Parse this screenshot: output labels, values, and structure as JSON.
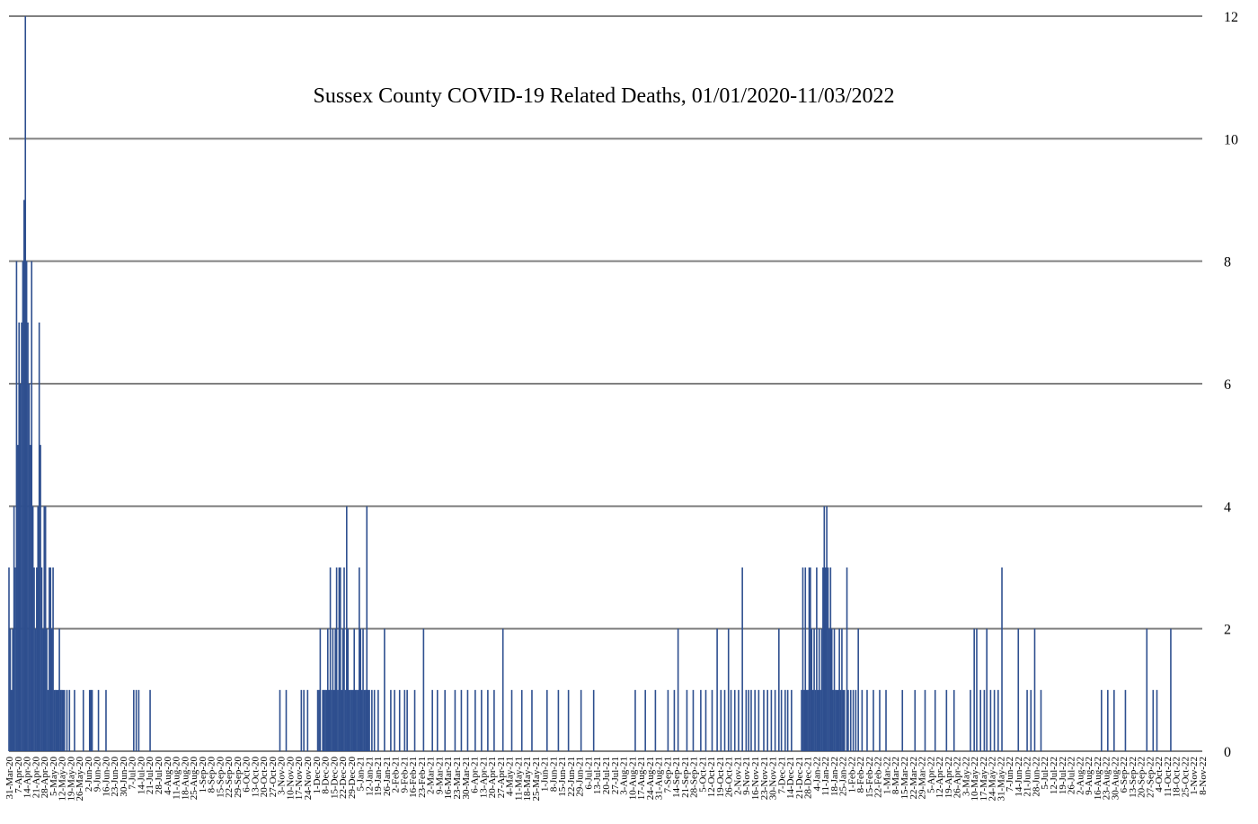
{
  "chart_data": {
    "type": "bar",
    "title": "Sussex County COVID-19 Related Deaths, 01/01/2020-11/03/2022",
    "y_axis_position": "right",
    "ylim": [
      0,
      12
    ],
    "yticks": [
      0,
      2,
      4,
      6,
      8,
      10,
      12
    ],
    "grid": true,
    "bar_color": "#2e4f8f",
    "x_start": "2020-03-31",
    "x_end": "2022-11-03",
    "xtick_labels": [
      "31-Mar-20",
      "7-Apr-20",
      "14-Apr-20",
      "21-Apr-20",
      "28-Apr-20",
      "5-May-20",
      "12-May-20",
      "19-May-20",
      "26-May-20",
      "2-Jun-20",
      "9-Jun-20",
      "16-Jun-20",
      "23-Jun-20",
      "30-Jun-20",
      "7-Jul-20",
      "14-Jul-20",
      "21-Jul-20",
      "28-Jul-20",
      "4-Aug-20",
      "11-Aug-20",
      "18-Aug-20",
      "25-Aug-20",
      "1-Sep-20",
      "8-Sep-20",
      "15-Sep-20",
      "22-Sep-20",
      "29-Sep-20",
      "6-Oct-20",
      "13-Oct-20",
      "20-Oct-20",
      "27-Oct-20",
      "3-Nov-20",
      "10-Nov-20",
      "17-Nov-20",
      "24-Nov-20",
      "1-Dec-20",
      "8-Dec-20",
      "15-Dec-20",
      "22-Dec-20",
      "29-Dec-20",
      "5-Jan-21",
      "12-Jan-21",
      "19-Jan-21",
      "26-Jan-21",
      "2-Feb-21",
      "9-Feb-21",
      "16-Feb-21",
      "23-Feb-21",
      "2-Mar-21",
      "9-Mar-21",
      "16-Mar-21",
      "23-Mar-21",
      "30-Mar-21",
      "6-Apr-21",
      "13-Apr-21",
      "20-Apr-21",
      "27-Apr-21",
      "4-May-21",
      "11-May-21",
      "18-May-21",
      "25-May-21",
      "1-Jun-21",
      "8-Jun-21",
      "15-Jun-21",
      "22-Jun-21",
      "29-Jun-21",
      "6-Jul-21",
      "13-Jul-21",
      "20-Jul-21",
      "27-Jul-21",
      "3-Aug-21",
      "10-Aug-21",
      "17-Aug-21",
      "24-Aug-21",
      "31-Aug-21",
      "7-Sep-21",
      "14-Sep-21",
      "21-Sep-21",
      "28-Sep-21",
      "5-Oct-21",
      "12-Oct-21",
      "19-Oct-21",
      "26-Oct-21",
      "2-Nov-21",
      "9-Nov-21",
      "16-Nov-21",
      "23-Nov-21",
      "30-Nov-21",
      "7-Dec-21",
      "14-Dec-21",
      "21-Dec-21",
      "28-Dec-21",
      "4-Jan-22",
      "11-Jan-22",
      "18-Jan-22",
      "25-Jan-22",
      "1-Feb-22",
      "8-Feb-22",
      "15-Feb-22",
      "22-Feb-22",
      "1-Mar-22",
      "8-Mar-22",
      "15-Mar-22",
      "22-Mar-22",
      "29-Mar-22",
      "5-Apr-22",
      "12-Apr-22",
      "19-Apr-22",
      "26-Apr-22",
      "3-May-22",
      "10-May-22",
      "17-May-22",
      "24-May-22",
      "31-May-22",
      "7-Jun-22",
      "14-Jun-22",
      "21-Jun-22",
      "28-Jun-22",
      "5-Jul-22",
      "12-Jul-22",
      "19-Jul-22",
      "26-Jul-22",
      "2-Aug-22",
      "9-Aug-22",
      "16-Aug-22",
      "23-Aug-22",
      "30-Aug-22",
      "6-Sep-22",
      "13-Sep-22",
      "20-Sep-22",
      "27-Sep-22",
      "4-Oct-22",
      "11-Oct-22",
      "18-Oct-22",
      "25-Oct-22",
      "1-Nov-22",
      "8-Nov-22"
    ],
    "bars": [
      {
        "x": "2020-03-31",
        "y": 3
      },
      {
        "x": "2020-04-01",
        "y": 2
      },
      {
        "x": "2020-04-02",
        "y": 1
      },
      {
        "x": "2020-04-03",
        "y": 2
      },
      {
        "x": "2020-04-04",
        "y": 4
      },
      {
        "x": "2020-04-05",
        "y": 3
      },
      {
        "x": "2020-04-06",
        "y": 8
      },
      {
        "x": "2020-04-07",
        "y": 5
      },
      {
        "x": "2020-04-08",
        "y": 7
      },
      {
        "x": "2020-04-09",
        "y": 6
      },
      {
        "x": "2020-04-10",
        "y": 7
      },
      {
        "x": "2020-04-11",
        "y": 8
      },
      {
        "x": "2020-04-12",
        "y": 9
      },
      {
        "x": "2020-04-13",
        "y": 12
      },
      {
        "x": "2020-04-14",
        "y": 8
      },
      {
        "x": "2020-04-15",
        "y": 7
      },
      {
        "x": "2020-04-16",
        "y": 6
      },
      {
        "x": "2020-04-17",
        "y": 5
      },
      {
        "x": "2020-04-18",
        "y": 8
      },
      {
        "x": "2020-04-19",
        "y": 4
      },
      {
        "x": "2020-04-20",
        "y": 3
      },
      {
        "x": "2020-04-21",
        "y": 2
      },
      {
        "x": "2020-04-22",
        "y": 3
      },
      {
        "x": "2020-04-23",
        "y": 4
      },
      {
        "x": "2020-04-24",
        "y": 7
      },
      {
        "x": "2020-04-25",
        "y": 5
      },
      {
        "x": "2020-04-26",
        "y": 3
      },
      {
        "x": "2020-04-27",
        "y": 2
      },
      {
        "x": "2020-04-28",
        "y": 4
      },
      {
        "x": "2020-04-29",
        "y": 4
      },
      {
        "x": "2020-04-30",
        "y": 2
      },
      {
        "x": "2020-05-01",
        "y": 1
      },
      {
        "x": "2020-05-02",
        "y": 3
      },
      {
        "x": "2020-05-03",
        "y": 3
      },
      {
        "x": "2020-05-04",
        "y": 2
      },
      {
        "x": "2020-05-05",
        "y": 3
      },
      {
        "x": "2020-05-06",
        "y": 1
      },
      {
        "x": "2020-05-07",
        "y": 1
      },
      {
        "x": "2020-05-08",
        "y": 1
      },
      {
        "x": "2020-05-09",
        "y": 1
      },
      {
        "x": "2020-05-10",
        "y": 2
      },
      {
        "x": "2020-05-11",
        "y": 1
      },
      {
        "x": "2020-05-12",
        "y": 1
      },
      {
        "x": "2020-05-13",
        "y": 1
      },
      {
        "x": "2020-05-14",
        "y": 1
      },
      {
        "x": "2020-05-16",
        "y": 1
      },
      {
        "x": "2020-05-18",
        "y": 1
      },
      {
        "x": "2020-05-22",
        "y": 1
      },
      {
        "x": "2020-05-29",
        "y": 1
      },
      {
        "x": "2020-06-03",
        "y": 1
      },
      {
        "x": "2020-06-04",
        "y": 1
      },
      {
        "x": "2020-06-05",
        "y": 1
      },
      {
        "x": "2020-06-10",
        "y": 1
      },
      {
        "x": "2020-06-16",
        "y": 1
      },
      {
        "x": "2020-07-08",
        "y": 1
      },
      {
        "x": "2020-07-10",
        "y": 1
      },
      {
        "x": "2020-07-12",
        "y": 1
      },
      {
        "x": "2020-07-21",
        "y": 1
      },
      {
        "x": "2020-11-01",
        "y": 1
      },
      {
        "x": "2020-11-06",
        "y": 1
      },
      {
        "x": "2020-11-18",
        "y": 1
      },
      {
        "x": "2020-11-20",
        "y": 1
      },
      {
        "x": "2020-11-23",
        "y": 1
      },
      {
        "x": "2020-12-01",
        "y": 1
      },
      {
        "x": "2020-12-02",
        "y": 1
      },
      {
        "x": "2020-12-03",
        "y": 2
      },
      {
        "x": "2020-12-05",
        "y": 1
      },
      {
        "x": "2020-12-06",
        "y": 1
      },
      {
        "x": "2020-12-07",
        "y": 1
      },
      {
        "x": "2020-12-08",
        "y": 1
      },
      {
        "x": "2020-12-09",
        "y": 2
      },
      {
        "x": "2020-12-10",
        "y": 1
      },
      {
        "x": "2020-12-11",
        "y": 3
      },
      {
        "x": "2020-12-12",
        "y": 1
      },
      {
        "x": "2020-12-13",
        "y": 2
      },
      {
        "x": "2020-12-14",
        "y": 1
      },
      {
        "x": "2020-12-15",
        "y": 2
      },
      {
        "x": "2020-12-16",
        "y": 3
      },
      {
        "x": "2020-12-17",
        "y": 1
      },
      {
        "x": "2020-12-18",
        "y": 3
      },
      {
        "x": "2020-12-19",
        "y": 3
      },
      {
        "x": "2020-12-20",
        "y": 1
      },
      {
        "x": "2020-12-21",
        "y": 2
      },
      {
        "x": "2020-12-22",
        "y": 3
      },
      {
        "x": "2020-12-23",
        "y": 1
      },
      {
        "x": "2020-12-24",
        "y": 4
      },
      {
        "x": "2020-12-25",
        "y": 2
      },
      {
        "x": "2020-12-26",
        "y": 1
      },
      {
        "x": "2020-12-27",
        "y": 1
      },
      {
        "x": "2020-12-28",
        "y": 1
      },
      {
        "x": "2020-12-29",
        "y": 1
      },
      {
        "x": "2020-12-30",
        "y": 2
      },
      {
        "x": "2020-12-31",
        "y": 1
      },
      {
        "x": "2021-01-01",
        "y": 1
      },
      {
        "x": "2021-01-02",
        "y": 1
      },
      {
        "x": "2021-01-03",
        "y": 3
      },
      {
        "x": "2021-01-04",
        "y": 2
      },
      {
        "x": "2021-01-05",
        "y": 1
      },
      {
        "x": "2021-01-06",
        "y": 2
      },
      {
        "x": "2021-01-07",
        "y": 1
      },
      {
        "x": "2021-01-08",
        "y": 1
      },
      {
        "x": "2021-01-09",
        "y": 4
      },
      {
        "x": "2021-01-10",
        "y": 1
      },
      {
        "x": "2021-01-11",
        "y": 1
      },
      {
        "x": "2021-01-13",
        "y": 1
      },
      {
        "x": "2021-01-15",
        "y": 1
      },
      {
        "x": "2021-01-18",
        "y": 1
      },
      {
        "x": "2021-01-23",
        "y": 2
      },
      {
        "x": "2021-01-28",
        "y": 1
      },
      {
        "x": "2021-01-31",
        "y": 1
      },
      {
        "x": "2021-02-04",
        "y": 1
      },
      {
        "x": "2021-02-08",
        "y": 1
      },
      {
        "x": "2021-02-10",
        "y": 1
      },
      {
        "x": "2021-02-16",
        "y": 1
      },
      {
        "x": "2021-02-23",
        "y": 2
      },
      {
        "x": "2021-03-02",
        "y": 1
      },
      {
        "x": "2021-03-06",
        "y": 1
      },
      {
        "x": "2021-03-12",
        "y": 1
      },
      {
        "x": "2021-03-20",
        "y": 1
      },
      {
        "x": "2021-03-25",
        "y": 1
      },
      {
        "x": "2021-03-30",
        "y": 1
      },
      {
        "x": "2021-04-05",
        "y": 1
      },
      {
        "x": "2021-04-10",
        "y": 1
      },
      {
        "x": "2021-04-15",
        "y": 1
      },
      {
        "x": "2021-04-20",
        "y": 1
      },
      {
        "x": "2021-04-27",
        "y": 2
      },
      {
        "x": "2021-05-04",
        "y": 1
      },
      {
        "x": "2021-05-12",
        "y": 1
      },
      {
        "x": "2021-05-20",
        "y": 1
      },
      {
        "x": "2021-06-01",
        "y": 1
      },
      {
        "x": "2021-06-10",
        "y": 1
      },
      {
        "x": "2021-06-18",
        "y": 1
      },
      {
        "x": "2021-06-28",
        "y": 1
      },
      {
        "x": "2021-07-08",
        "y": 1
      },
      {
        "x": "2021-08-10",
        "y": 1
      },
      {
        "x": "2021-08-18",
        "y": 1
      },
      {
        "x": "2021-08-26",
        "y": 1
      },
      {
        "x": "2021-09-05",
        "y": 1
      },
      {
        "x": "2021-09-10",
        "y": 1
      },
      {
        "x": "2021-09-13",
        "y": 2
      },
      {
        "x": "2021-09-20",
        "y": 1
      },
      {
        "x": "2021-09-25",
        "y": 1
      },
      {
        "x": "2021-10-01",
        "y": 1
      },
      {
        "x": "2021-10-05",
        "y": 1
      },
      {
        "x": "2021-10-10",
        "y": 1
      },
      {
        "x": "2021-10-14",
        "y": 2
      },
      {
        "x": "2021-10-17",
        "y": 1
      },
      {
        "x": "2021-10-20",
        "y": 1
      },
      {
        "x": "2021-10-23",
        "y": 2
      },
      {
        "x": "2021-10-25",
        "y": 1
      },
      {
        "x": "2021-10-28",
        "y": 1
      },
      {
        "x": "2021-10-31",
        "y": 1
      },
      {
        "x": "2021-11-03",
        "y": 3
      },
      {
        "x": "2021-11-06",
        "y": 1
      },
      {
        "x": "2021-11-08",
        "y": 1
      },
      {
        "x": "2021-11-10",
        "y": 1
      },
      {
        "x": "2021-11-13",
        "y": 1
      },
      {
        "x": "2021-11-16",
        "y": 1
      },
      {
        "x": "2021-11-20",
        "y": 1
      },
      {
        "x": "2021-11-23",
        "y": 1
      },
      {
        "x": "2021-11-26",
        "y": 1
      },
      {
        "x": "2021-11-29",
        "y": 1
      },
      {
        "x": "2021-12-02",
        "y": 2
      },
      {
        "x": "2021-12-04",
        "y": 1
      },
      {
        "x": "2021-12-07",
        "y": 1
      },
      {
        "x": "2021-12-09",
        "y": 1
      },
      {
        "x": "2021-12-12",
        "y": 1
      },
      {
        "x": "2021-12-20",
        "y": 1
      },
      {
        "x": "2021-12-21",
        "y": 3
      },
      {
        "x": "2021-12-22",
        "y": 1
      },
      {
        "x": "2021-12-23",
        "y": 3
      },
      {
        "x": "2021-12-24",
        "y": 1
      },
      {
        "x": "2021-12-25",
        "y": 1
      },
      {
        "x": "2021-12-26",
        "y": 3
      },
      {
        "x": "2021-12-27",
        "y": 3
      },
      {
        "x": "2021-12-28",
        "y": 2
      },
      {
        "x": "2021-12-29",
        "y": 1
      },
      {
        "x": "2021-12-30",
        "y": 2
      },
      {
        "x": "2021-12-31",
        "y": 1
      },
      {
        "x": "2022-01-01",
        "y": 3
      },
      {
        "x": "2022-01-02",
        "y": 1
      },
      {
        "x": "2022-01-03",
        "y": 2
      },
      {
        "x": "2022-01-04",
        "y": 1
      },
      {
        "x": "2022-01-05",
        "y": 2
      },
      {
        "x": "2022-01-06",
        "y": 3
      },
      {
        "x": "2022-01-07",
        "y": 4
      },
      {
        "x": "2022-01-08",
        "y": 3
      },
      {
        "x": "2022-01-09",
        "y": 4
      },
      {
        "x": "2022-01-10",
        "y": 3
      },
      {
        "x": "2022-01-11",
        "y": 2
      },
      {
        "x": "2022-01-12",
        "y": 3
      },
      {
        "x": "2022-01-13",
        "y": 2
      },
      {
        "x": "2022-01-14",
        "y": 1
      },
      {
        "x": "2022-01-15",
        "y": 2
      },
      {
        "x": "2022-01-16",
        "y": 1
      },
      {
        "x": "2022-01-17",
        "y": 1
      },
      {
        "x": "2022-01-18",
        "y": 1
      },
      {
        "x": "2022-01-19",
        "y": 2
      },
      {
        "x": "2022-01-20",
        "y": 1
      },
      {
        "x": "2022-01-21",
        "y": 2
      },
      {
        "x": "2022-01-22",
        "y": 1
      },
      {
        "x": "2022-01-23",
        "y": 1
      },
      {
        "x": "2022-01-25",
        "y": 3
      },
      {
        "x": "2022-01-26",
        "y": 1
      },
      {
        "x": "2022-01-28",
        "y": 1
      },
      {
        "x": "2022-01-30",
        "y": 1
      },
      {
        "x": "2022-02-01",
        "y": 1
      },
      {
        "x": "2022-02-03",
        "y": 2
      },
      {
        "x": "2022-02-06",
        "y": 1
      },
      {
        "x": "2022-02-10",
        "y": 1
      },
      {
        "x": "2022-02-15",
        "y": 1
      },
      {
        "x": "2022-02-20",
        "y": 1
      },
      {
        "x": "2022-02-25",
        "y": 1
      },
      {
        "x": "2022-03-10",
        "y": 1
      },
      {
        "x": "2022-03-20",
        "y": 1
      },
      {
        "x": "2022-03-28",
        "y": 1
      },
      {
        "x": "2022-04-05",
        "y": 1
      },
      {
        "x": "2022-04-14",
        "y": 1
      },
      {
        "x": "2022-04-20",
        "y": 1
      },
      {
        "x": "2022-05-03",
        "y": 1
      },
      {
        "x": "2022-05-06",
        "y": 2
      },
      {
        "x": "2022-05-08",
        "y": 2
      },
      {
        "x": "2022-05-11",
        "y": 1
      },
      {
        "x": "2022-05-14",
        "y": 1
      },
      {
        "x": "2022-05-16",
        "y": 2
      },
      {
        "x": "2022-05-19",
        "y": 1
      },
      {
        "x": "2022-05-22",
        "y": 1
      },
      {
        "x": "2022-05-25",
        "y": 1
      },
      {
        "x": "2022-05-28",
        "y": 3
      },
      {
        "x": "2022-06-10",
        "y": 2
      },
      {
        "x": "2022-06-17",
        "y": 1
      },
      {
        "x": "2022-06-20",
        "y": 1
      },
      {
        "x": "2022-06-23",
        "y": 2
      },
      {
        "x": "2022-06-28",
        "y": 1
      },
      {
        "x": "2022-08-15",
        "y": 1
      },
      {
        "x": "2022-08-20",
        "y": 1
      },
      {
        "x": "2022-08-25",
        "y": 1
      },
      {
        "x": "2022-09-03",
        "y": 1
      },
      {
        "x": "2022-09-20",
        "y": 2
      },
      {
        "x": "2022-09-25",
        "y": 1
      },
      {
        "x": "2022-09-28",
        "y": 1
      },
      {
        "x": "2022-10-09",
        "y": 2
      }
    ]
  }
}
